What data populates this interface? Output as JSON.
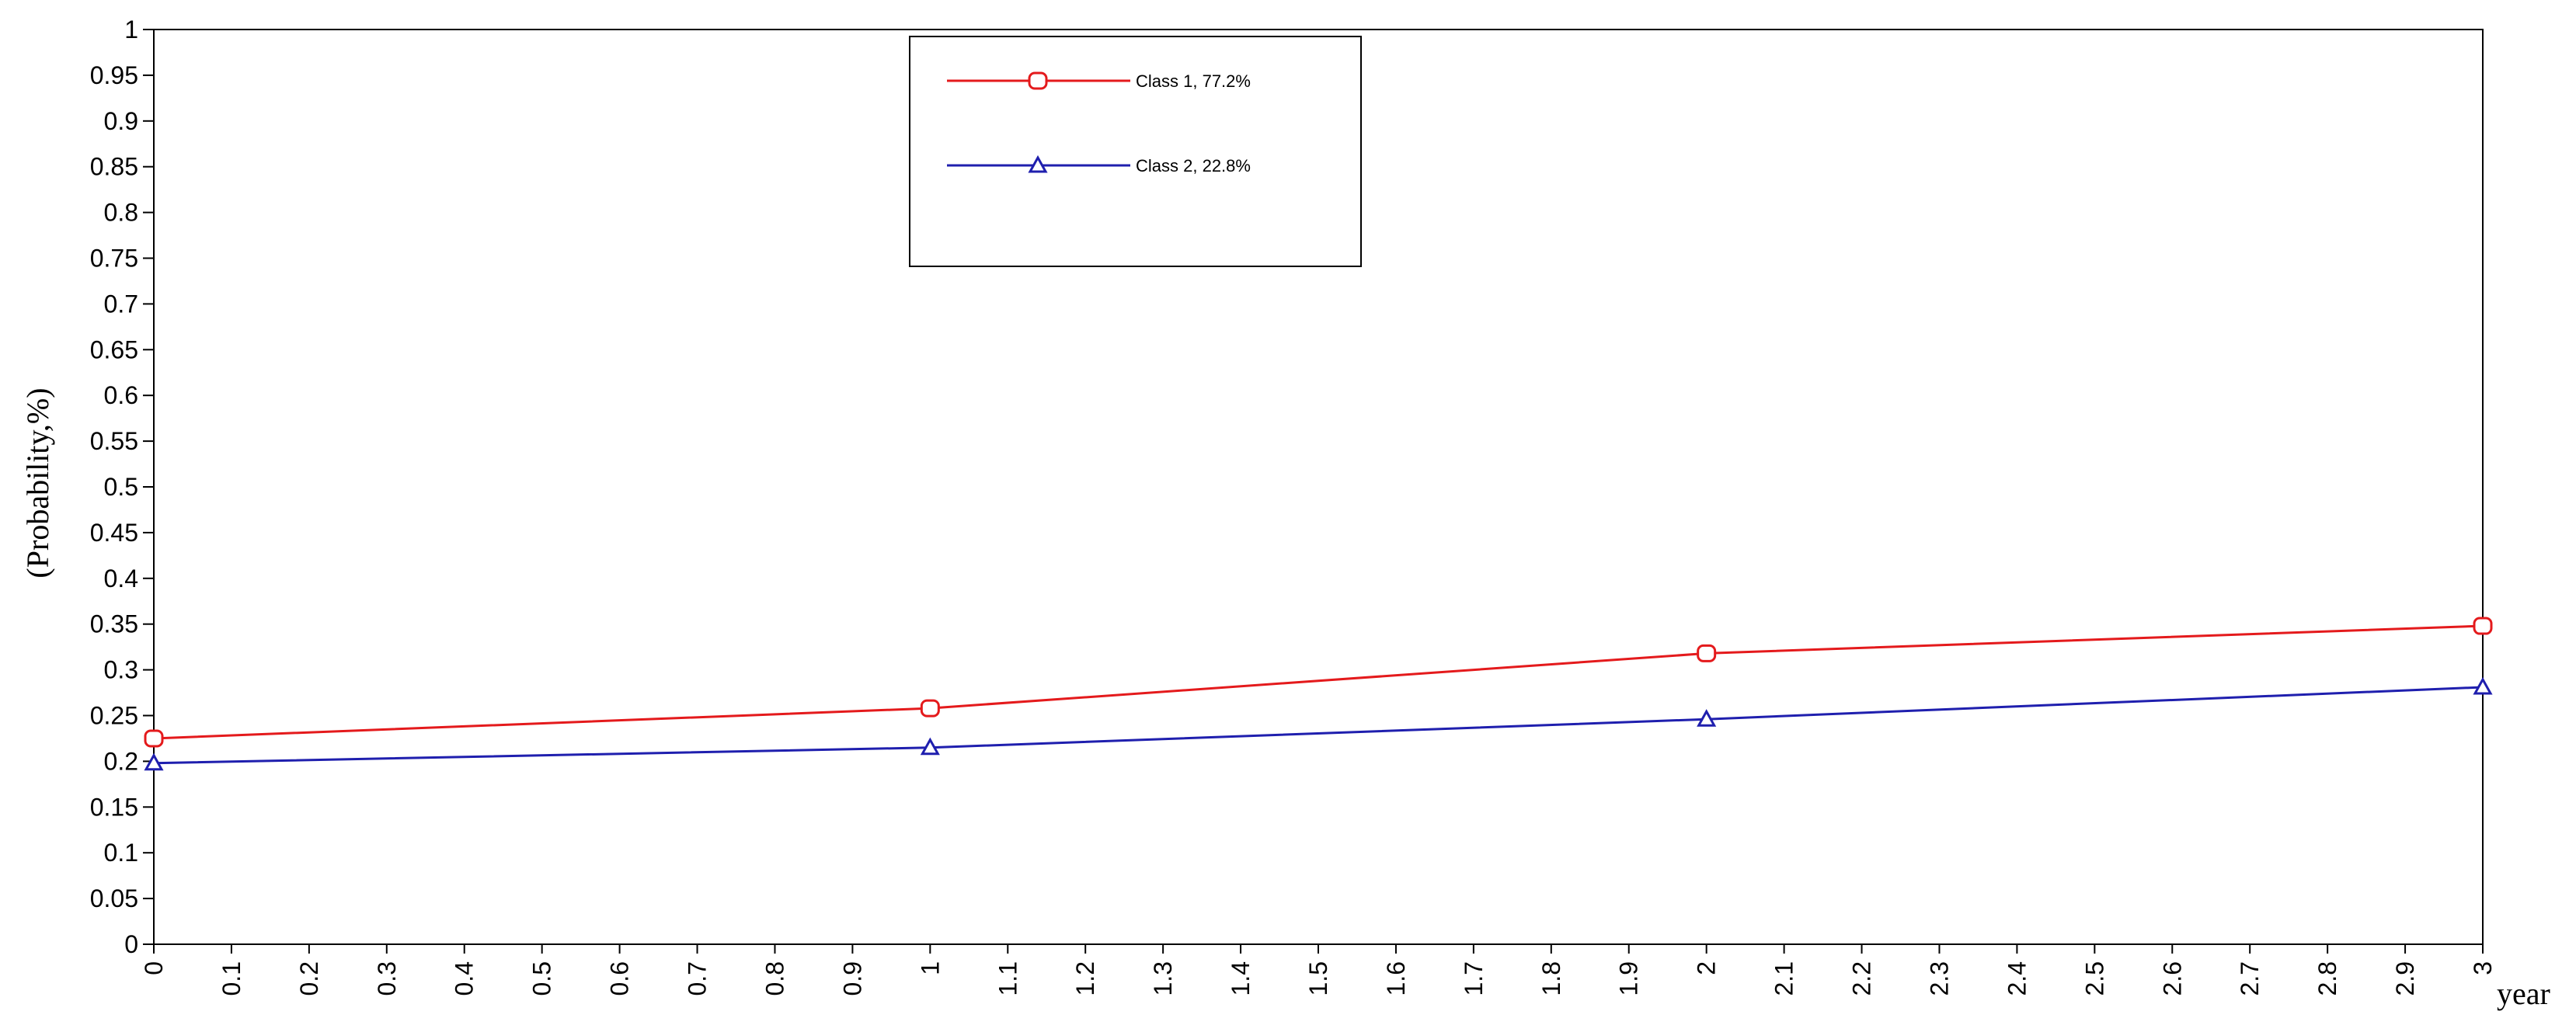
{
  "chart_data": {
    "type": "line",
    "title": "",
    "xlabel": "year",
    "ylabel": "(Probability,%)",
    "xlim": [
      0,
      3
    ],
    "ylim": [
      0,
      1
    ],
    "x_ticks": [
      "0",
      "0.1",
      "0.2",
      "0.3",
      "0.4",
      "0.5",
      "0.6",
      "0.7",
      "0.8",
      "0.9",
      "1",
      "1.1",
      "1.2",
      "1.3",
      "1.4",
      "1.5",
      "1.6",
      "1.7",
      "1.8",
      "1.9",
      "2",
      "2.1",
      "2.2",
      "2.3",
      "2.4",
      "2.5",
      "2.6",
      "2.7",
      "2.8",
      "2.9",
      "3"
    ],
    "y_ticks": [
      "0",
      "0.05",
      "0.1",
      "0.15",
      "0.2",
      "0.25",
      "0.3",
      "0.35",
      "0.4",
      "0.45",
      "0.5",
      "0.55",
      "0.6",
      "0.65",
      "0.7",
      "0.75",
      "0.8",
      "0.85",
      "0.9",
      "0.95",
      "1"
    ],
    "grid": false,
    "legend_position": "top-center",
    "x": [
      0,
      1,
      2,
      3
    ],
    "series": [
      {
        "name": "Class 1, 77.2%",
        "color": "#e41a1c",
        "marker": "rounded-square",
        "values": [
          0.225,
          0.258,
          0.318,
          0.348
        ]
      },
      {
        "name": "Class 2, 22.8%",
        "color": "#1f1fae",
        "marker": "triangle",
        "values": [
          0.198,
          0.215,
          0.246,
          0.281
        ]
      }
    ]
  }
}
